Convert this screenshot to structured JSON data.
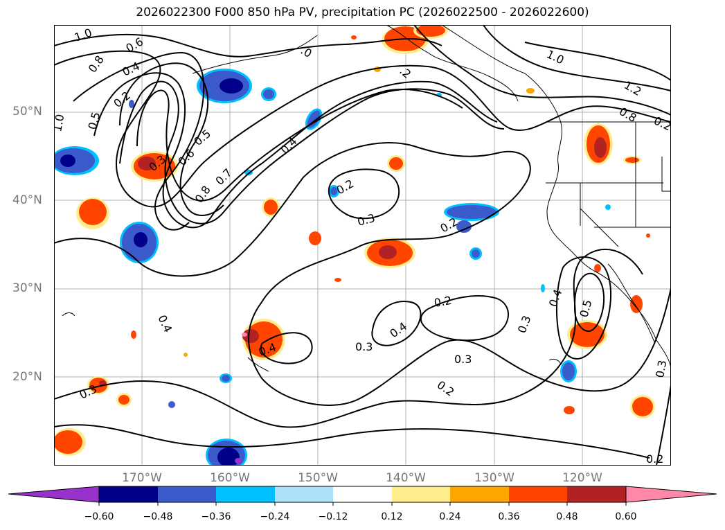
{
  "title": "2026022300 F000 850 hPa PV, precipitation PC (2026022500 - 2026022600)",
  "map": {
    "lat_labels": [
      "50°N",
      "40°N",
      "30°N",
      "20°N"
    ],
    "lon_labels": [
      "170°W",
      "160°W",
      "150°W",
      "140°W",
      "130°W",
      "120°W"
    ]
  },
  "contours": {
    "labels": [
      "1.0",
      "0.8",
      "0.6",
      "0.4",
      "0.2",
      "1.0",
      "0.5",
      "0.3",
      "0.6",
      "0.5",
      "0.8",
      "0.7",
      "0.4",
      "0.2",
      "0.3",
      "0.2",
      "0.4",
      "0.3",
      "0.4",
      "0.4",
      "0.3",
      "0.3",
      "0.2",
      "0.2",
      "0.3",
      "0.4",
      "0.5",
      "0.3",
      "0.2",
      "1.0",
      "1.2",
      "0.8",
      ".0",
      ".2",
      "0.2"
    ]
  },
  "colorbar": {
    "colors": [
      "#9932CC",
      "#00008B",
      "#3B5BCC",
      "#00BFFF",
      "#ADE1FA",
      "#FFFFFF",
      "#FFEC8B",
      "#FFA500",
      "#FF4500",
      "#B22222",
      "#FF88A8"
    ],
    "ticks": [
      "−0.60",
      "−0.48",
      "−0.36",
      "−0.24",
      "−0.12",
      "0.12",
      "0.24",
      "0.36",
      "0.48",
      "0.60"
    ]
  }
}
